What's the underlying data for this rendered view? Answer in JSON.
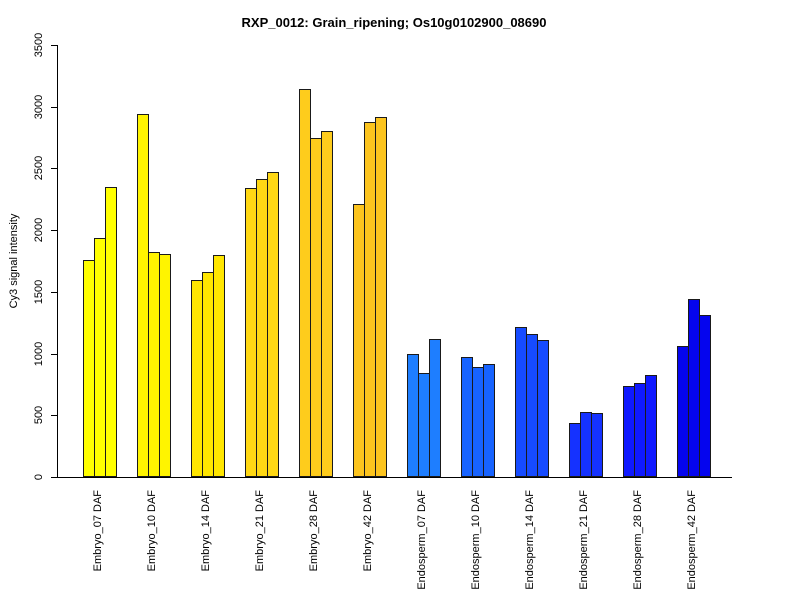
{
  "chart_data": {
    "type": "bar",
    "title": "RXP_0012: Grain_ripening; Os10g0102900_08690",
    "xlabel": "",
    "ylabel": "Cy3 signal intensity",
    "ylim": [
      0,
      3500
    ],
    "yticks": [
      0,
      500,
      1000,
      1500,
      2000,
      2500,
      3000,
      3500
    ],
    "grid": false,
    "legend_position": "none",
    "bars_per_category": 3,
    "categories": [
      "Embryo_07 DAF",
      "Embryo_10 DAF",
      "Embryo_14 DAF",
      "Embryo_21 DAF",
      "Embryo_28 DAF",
      "Embryo_42 DAF",
      "Endosperm_07 DAF",
      "Endosperm_10 DAF",
      "Endosperm_14 DAF",
      "Endosperm_21 DAF",
      "Endosperm_28 DAF",
      "Endosperm_42 DAF"
    ],
    "values": [
      [
        1760,
        1940,
        2350
      ],
      [
        2940,
        1825,
        1810
      ],
      [
        1600,
        1665,
        1800
      ],
      [
        2340,
        2415,
        2475
      ],
      [
        3145,
        2745,
        2805
      ],
      [
        2210,
        2875,
        2915
      ],
      [
        995,
        845,
        1120
      ],
      [
        970,
        890,
        915
      ],
      [
        1215,
        1160,
        1110
      ],
      [
        440,
        525,
        520
      ],
      [
        740,
        765,
        825
      ],
      [
        1065,
        1445,
        1315
      ]
    ],
    "group_colors": [
      "#ffff00",
      "#fff400",
      "#ffe600",
      "#ffd814",
      "#fecc1c",
      "#fcc41e",
      "#1e7eff",
      "#1763ff",
      "#164bff",
      "#1532ff",
      "#0f19ff",
      "#0505ee"
    ],
    "bar_border_color": "#1a1a1a",
    "axis_color": "#000000",
    "background_color": "#ffffff"
  }
}
